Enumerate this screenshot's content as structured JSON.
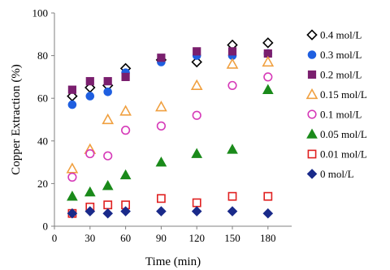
{
  "chart_data": {
    "type": "scatter",
    "title": "",
    "xlabel": "Time (min)",
    "ylabel": "Copper Extraction (%)",
    "xlim": [
      0,
      200
    ],
    "ylim": [
      0,
      100
    ],
    "x_ticks": [
      "0",
      "30",
      "60",
      "90",
      "120",
      "150",
      "180"
    ],
    "y_ticks": [
      "0",
      "20",
      "40",
      "60",
      "80",
      "100"
    ],
    "grid": false,
    "legend": "right",
    "series": [
      {
        "name": "0.4 mol/L",
        "marker": "diamond-open",
        "color": "#000000",
        "points": [
          [
            15,
            61
          ],
          [
            30,
            65
          ],
          [
            45,
            66
          ],
          [
            60,
            74
          ],
          [
            90,
            78
          ],
          [
            120,
            77
          ],
          [
            150,
            85
          ],
          [
            180,
            86
          ]
        ]
      },
      {
        "name": "0.3 mol/L",
        "marker": "circle-filled",
        "color": "#1f5fe0",
        "points": [
          [
            15,
            57
          ],
          [
            30,
            61
          ],
          [
            45,
            63
          ],
          [
            60,
            72
          ],
          [
            90,
            77
          ],
          [
            120,
            80
          ],
          [
            150,
            80
          ],
          [
            180,
            81
          ]
        ]
      },
      {
        "name": "0.2 mol/L",
        "marker": "square-filled",
        "color": "#7a1f6e",
        "points": [
          [
            15,
            64
          ],
          [
            30,
            68
          ],
          [
            45,
            68
          ],
          [
            60,
            70
          ],
          [
            90,
            79
          ],
          [
            120,
            82
          ],
          [
            150,
            82
          ],
          [
            180,
            81
          ]
        ]
      },
      {
        "name": "0.15 mol/L",
        "marker": "triangle-open",
        "color": "#f0a040",
        "points": [
          [
            15,
            27
          ],
          [
            30,
            36
          ],
          [
            45,
            50
          ],
          [
            60,
            54
          ],
          [
            90,
            56
          ],
          [
            120,
            66
          ],
          [
            150,
            76
          ],
          [
            180,
            77
          ]
        ]
      },
      {
        "name": "0.1 mol/L",
        "marker": "circle-open",
        "color": "#d63ab8",
        "points": [
          [
            15,
            23
          ],
          [
            30,
            34
          ],
          [
            45,
            33
          ],
          [
            60,
            45
          ],
          [
            90,
            47
          ],
          [
            120,
            52
          ],
          [
            150,
            66
          ],
          [
            180,
            70
          ]
        ]
      },
      {
        "name": "0.05 mol/L",
        "marker": "triangle-filled",
        "color": "#1a8a1a",
        "points": [
          [
            15,
            14
          ],
          [
            30,
            16
          ],
          [
            45,
            19
          ],
          [
            60,
            24
          ],
          [
            90,
            30
          ],
          [
            120,
            34
          ],
          [
            150,
            36
          ],
          [
            180,
            64
          ]
        ]
      },
      {
        "name": "0.01 mol/L",
        "marker": "square-open",
        "color": "#e02020",
        "points": [
          [
            15,
            6
          ],
          [
            30,
            9
          ],
          [
            45,
            10
          ],
          [
            60,
            10
          ],
          [
            90,
            13
          ],
          [
            120,
            11
          ],
          [
            150,
            14
          ],
          [
            180,
            14
          ]
        ]
      },
      {
        "name": "0 mol/L",
        "marker": "diamond-filled",
        "color": "#1a2a8a",
        "points": [
          [
            15,
            6
          ],
          [
            30,
            7
          ],
          [
            45,
            6
          ],
          [
            60,
            7
          ],
          [
            90,
            7
          ],
          [
            120,
            7
          ],
          [
            150,
            7
          ],
          [
            180,
            6
          ]
        ]
      }
    ]
  }
}
